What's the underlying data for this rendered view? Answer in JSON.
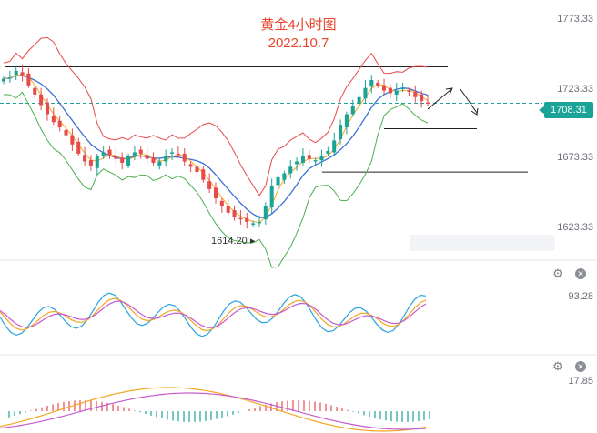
{
  "title_line1": "黄金4小时图",
  "title_line2": "2022.10.7",
  "price_axis": [
    "1773.33",
    "1723.33",
    "1673.33",
    "1623.33"
  ],
  "current_price": "1708.31",
  "low_label": "1614.20",
  "osc_panel": {
    "level_label": "93.28",
    "settings_icon": "gear-icon",
    "close_icon": "close-icon"
  },
  "macd_panel": {
    "level_label": "17.85",
    "settings_icon": "gear-icon",
    "close_icon": "close-icon"
  },
  "colors": {
    "up": "#1aa396",
    "down": "#e84a4a",
    "upper_band": "#e84a4a",
    "lower_band": "#4caf50",
    "ma_fast": "#f5a623",
    "ma_slow": "#3d6fd8",
    "title": "#e8452c"
  },
  "chart_data": {
    "type": "candlestick",
    "title": "黄金4小时图 2022.10.7",
    "ylim": [
      1600,
      1780
    ],
    "y_ticks": [
      1773.33,
      1723.33,
      1673.33,
      1623.33
    ],
    "current_price": 1708.31,
    "annotated_low": 1614.2,
    "horizontal_levels": [
      1736,
      1689,
      1656
    ],
    "close_path": [
      1727,
      1728,
      1733,
      1730,
      1722,
      1715,
      1707,
      1700,
      1694,
      1690,
      1684,
      1677,
      1670,
      1664,
      1661,
      1668,
      1671,
      1669,
      1666,
      1663,
      1668,
      1671,
      1670,
      1666,
      1663,
      1664,
      1668,
      1671,
      1669,
      1664,
      1660,
      1656,
      1650,
      1643,
      1636,
      1630,
      1625,
      1622,
      1620,
      1618,
      1617,
      1618,
      1630,
      1645,
      1652,
      1655,
      1660,
      1664,
      1668,
      1666,
      1665,
      1668,
      1672,
      1680,
      1692,
      1700,
      1706,
      1713,
      1720,
      1726,
      1722,
      1718,
      1716,
      1718,
      1720,
      1717,
      1713,
      1710,
      1708
    ]
  }
}
